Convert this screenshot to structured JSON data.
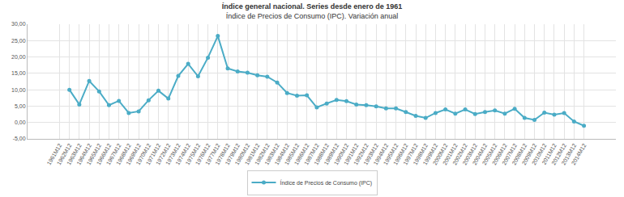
{
  "chart_data": {
    "type": "line",
    "title": "Índice general nacional. Series desde enero de 1961",
    "subtitle": "Índice de Precios de Consumo (IPC). Variación anual",
    "categories": [
      "1961M12",
      "1962M12",
      "1963M12",
      "1964M12",
      "1965M12",
      "1966M12",
      "1967M12",
      "1968M12",
      "1969M12",
      "1970M12",
      "1971M12",
      "1972M12",
      "1973M12",
      "1974M12",
      "1975M12",
      "1976M12",
      "1977M12",
      "1978M12",
      "1979M12",
      "1980M12",
      "1981M12",
      "1982M12",
      "1983M12",
      "1984M12",
      "1985M12",
      "1986M12",
      "1987M12",
      "1988M12",
      "1989M12",
      "1990M12",
      "1991M12",
      "1992M12",
      "1993M12",
      "1994M12",
      "1995M12",
      "1996M12",
      "1997M12",
      "1998M12",
      "1999M12",
      "2000M12",
      "2001M12",
      "2002M12",
      "2003M12",
      "2004M12",
      "2005M12",
      "2006M12",
      "2007M12",
      "2008M12",
      "2009M12",
      "2010M12",
      "2011M12",
      "2012M12",
      "2013M12",
      "2014M12"
    ],
    "series": [
      {
        "name": "Índice de Precios de Consumo (IPC)",
        "color": "#4bacc6",
        "marker": "circle",
        "line_style": "solid",
        "values": [
          null,
          10.0,
          5.5,
          12.7,
          9.5,
          5.3,
          6.6,
          2.9,
          3.4,
          6.8,
          9.7,
          7.3,
          14.2,
          17.9,
          14.1,
          19.8,
          26.4,
          16.5,
          15.6,
          15.2,
          14.4,
          14.0,
          12.2,
          9.0,
          8.2,
          8.3,
          4.6,
          5.8,
          6.9,
          6.5,
          5.5,
          5.3,
          4.9,
          4.3,
          4.3,
          3.2,
          2.0,
          1.4,
          2.9,
          4.0,
          2.7,
          4.0,
          2.6,
          3.2,
          3.7,
          2.7,
          4.2,
          1.4,
          0.8,
          3.0,
          2.4,
          2.9,
          0.3,
          -1.0
        ]
      }
    ],
    "ylim": [
      -5,
      30
    ],
    "yticks": [
      {
        "value": -5,
        "label": "-5,00"
      },
      {
        "value": 0,
        "label": "0,00"
      },
      {
        "value": 5,
        "label": "5,00"
      },
      {
        "value": 10,
        "label": "10,00"
      },
      {
        "value": 15,
        "label": "15,00"
      },
      {
        "value": 20,
        "label": "20,00"
      },
      {
        "value": 25,
        "label": "25,00"
      },
      {
        "value": 30,
        "label": "30,00"
      }
    ],
    "grid": true,
    "legend": "bottom"
  }
}
